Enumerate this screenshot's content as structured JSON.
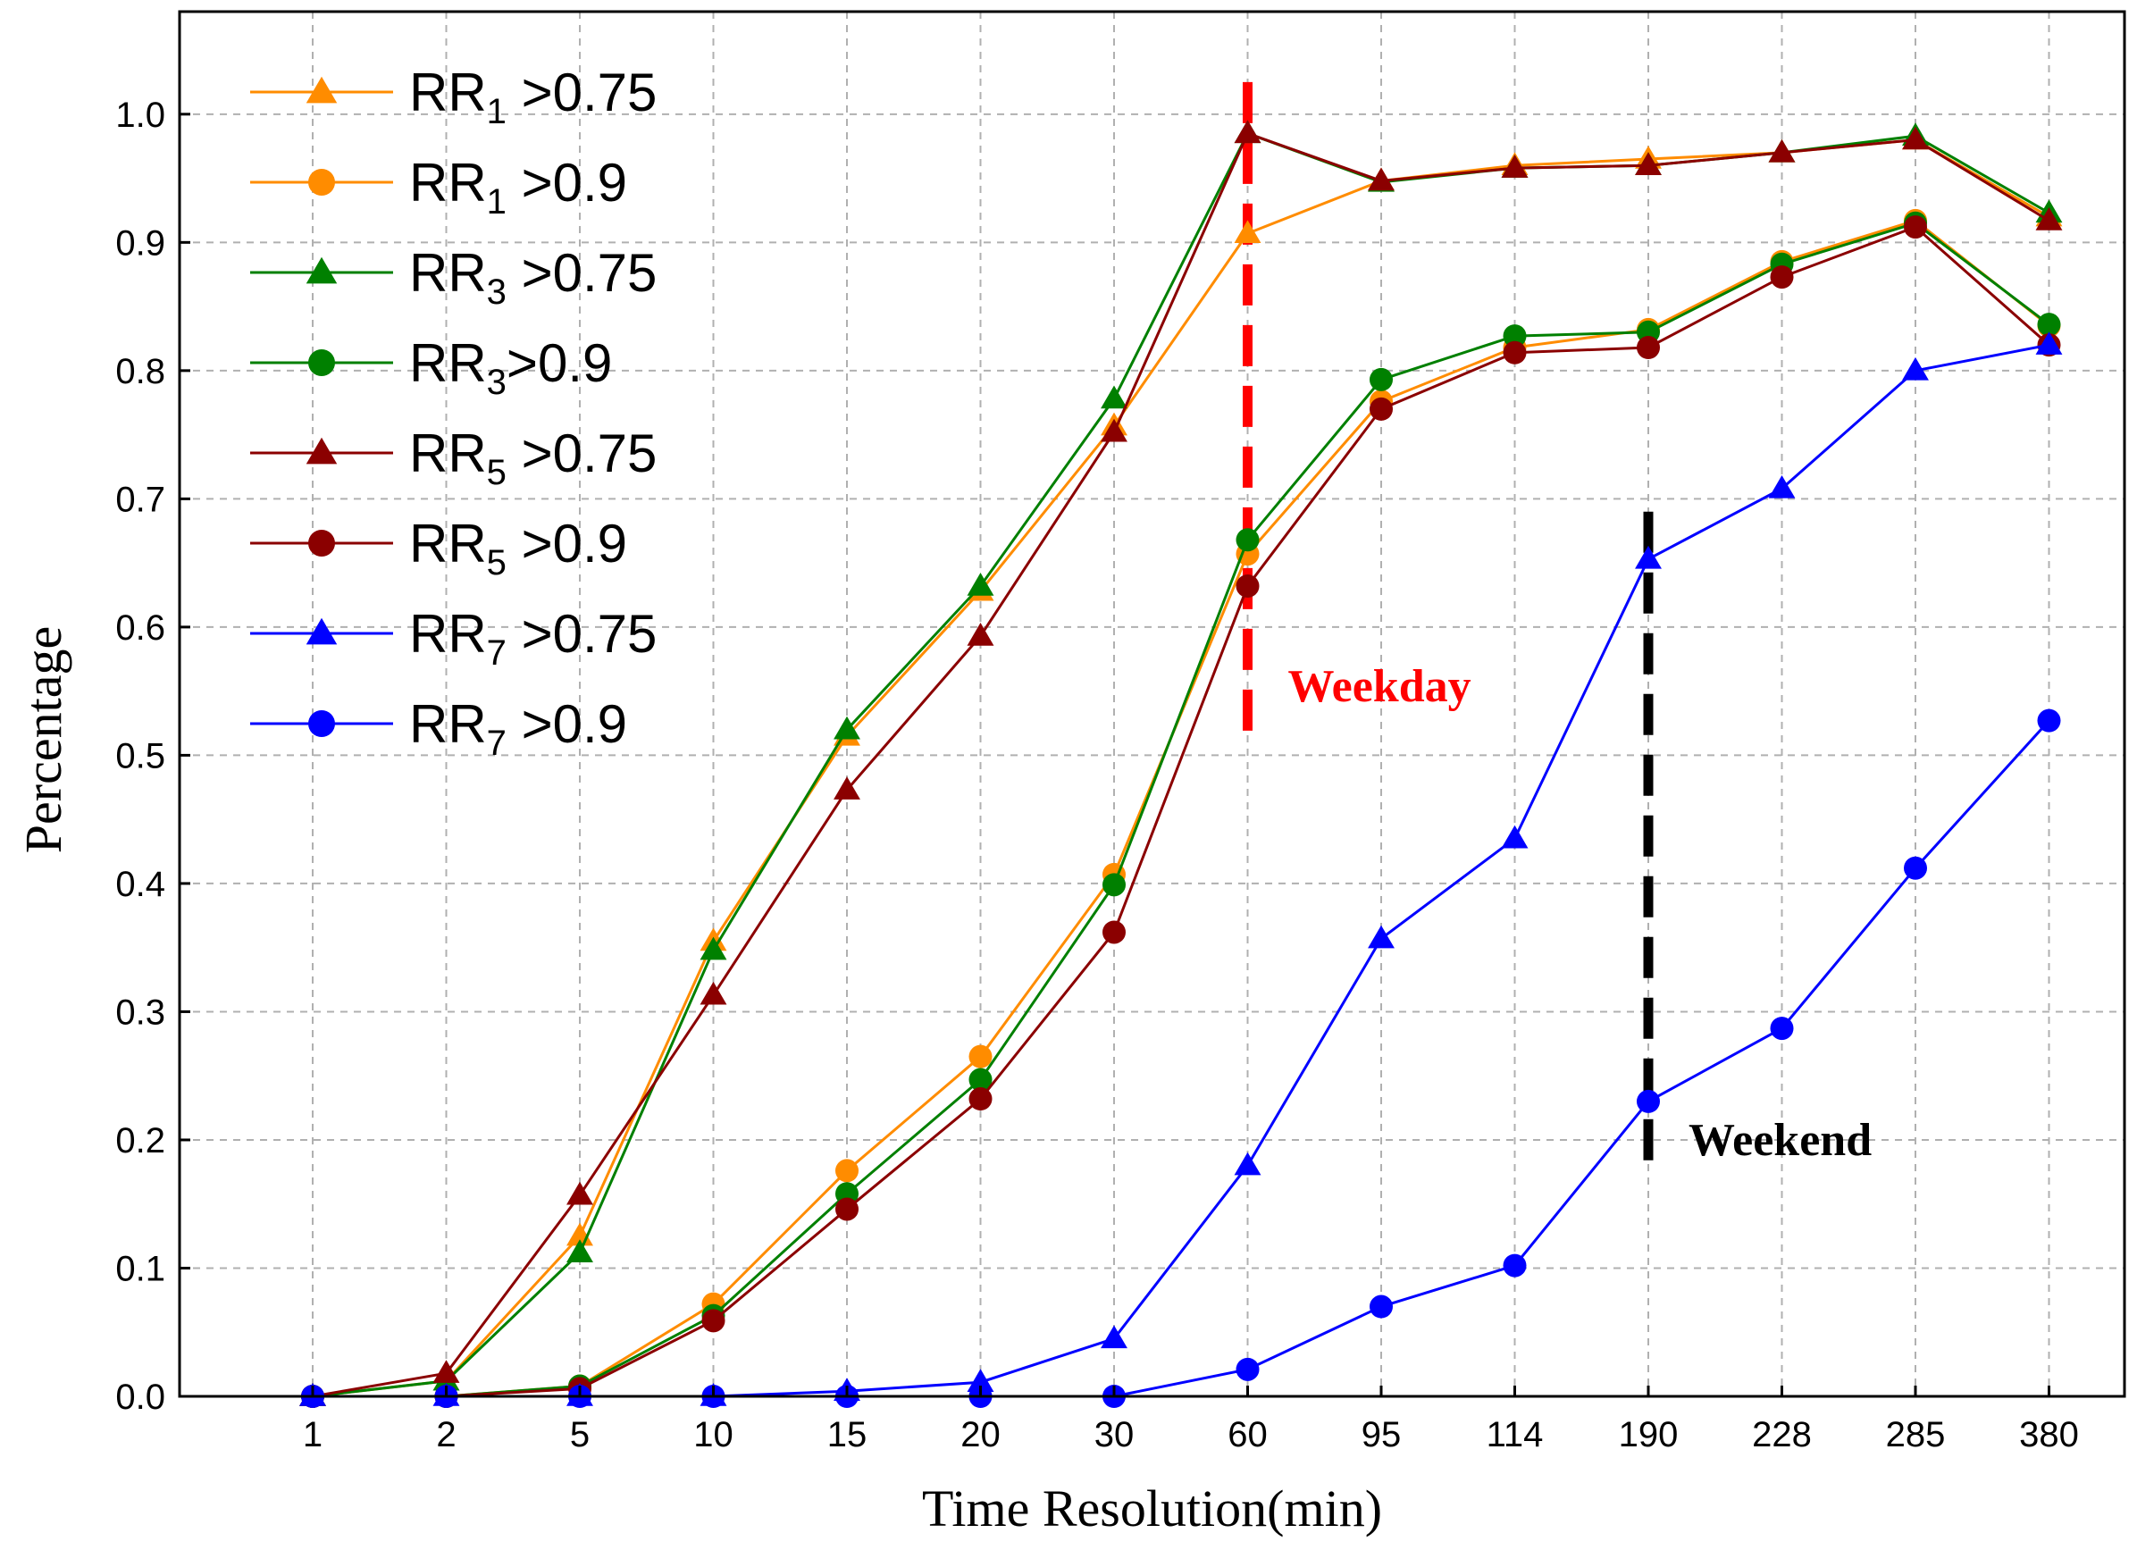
{
  "chart_data": {
    "type": "line",
    "xlabel": "Time Resolution(min)",
    "ylabel": "Percentage",
    "categories": [
      "1",
      "2",
      "5",
      "10",
      "15",
      "20",
      "30",
      "60",
      "95",
      "114",
      "190",
      "228",
      "285",
      "380"
    ],
    "ylim": [
      0,
      1.08
    ],
    "yticks": [
      "0.0",
      "0.1",
      "0.2",
      "0.3",
      "0.4",
      "0.5",
      "0.6",
      "0.7",
      "0.8",
      "0.9",
      "1.0"
    ],
    "grid": true,
    "legend_position": "top-left",
    "series": [
      {
        "name": "RR",
        "subscript": "1",
        "suffix": " >0.75",
        "color": "#ff8c00",
        "marker": "triangle",
        "values": [
          0,
          0.012,
          0.125,
          0.355,
          0.515,
          0.628,
          0.757,
          0.907,
          0.948,
          0.96,
          0.965,
          0.97,
          0.98,
          0.92
        ]
      },
      {
        "name": "RR",
        "subscript": "1",
        "suffix": " >0.9",
        "color": "#ff8c00",
        "marker": "circle",
        "values": [
          0,
          0,
          0.008,
          0.072,
          0.176,
          0.265,
          0.407,
          0.657,
          0.776,
          0.818,
          0.832,
          0.885,
          0.917,
          0.835
        ]
      },
      {
        "name": "RR",
        "subscript": "3",
        "suffix": " >0.75",
        "color": "#008000",
        "marker": "triangle",
        "values": [
          0,
          0.012,
          0.112,
          0.348,
          0.52,
          0.632,
          0.778,
          0.985,
          0.947,
          0.958,
          0.96,
          0.97,
          0.983,
          0.923
        ]
      },
      {
        "name": "RR",
        "subscript": "3",
        "suffix": ">0.9",
        "color": "#008000",
        "marker": "circle",
        "values": [
          0,
          0,
          0.008,
          0.063,
          0.158,
          0.247,
          0.399,
          0.668,
          0.793,
          0.827,
          0.83,
          0.883,
          0.915,
          0.836
        ]
      },
      {
        "name": "RR",
        "subscript": "5",
        "suffix": " >0.75",
        "color": "#8b0000",
        "marker": "triangle",
        "values": [
          0,
          0.018,
          0.157,
          0.313,
          0.473,
          0.593,
          0.752,
          0.985,
          0.948,
          0.958,
          0.96,
          0.97,
          0.98,
          0.917
        ]
      },
      {
        "name": "RR",
        "subscript": "5",
        "suffix": " >0.9",
        "color": "#8b0000",
        "marker": "circle",
        "values": [
          0,
          0,
          0.006,
          0.059,
          0.146,
          0.232,
          0.362,
          0.632,
          0.77,
          0.814,
          0.818,
          0.873,
          0.912,
          0.82
        ]
      },
      {
        "name": "RR",
        "subscript": "7",
        "suffix": " >0.75",
        "color": "#0000ff",
        "marker": "triangle",
        "values": [
          0,
          0,
          0,
          0,
          0.004,
          0.011,
          0.045,
          0.18,
          0.357,
          0.435,
          0.653,
          0.708,
          0.8,
          0.82
        ]
      },
      {
        "name": "RR",
        "subscript": "7",
        "suffix": " >0.9",
        "color": "#0000ff",
        "marker": "circle",
        "values": [
          0,
          0,
          0,
          0,
          0,
          0,
          0,
          0.021,
          0.07,
          0.102,
          0.23,
          0.287,
          0.412,
          0.527
        ]
      }
    ],
    "annotations": [
      {
        "text": "Weekday",
        "color": "#ff0000",
        "x_category": "60",
        "y_from": 0.51,
        "y_to": 1.025
      },
      {
        "text": "Weekend",
        "color": "#000000",
        "x_category": "190",
        "y_from": 0.17,
        "y_to": 0.69
      }
    ]
  }
}
